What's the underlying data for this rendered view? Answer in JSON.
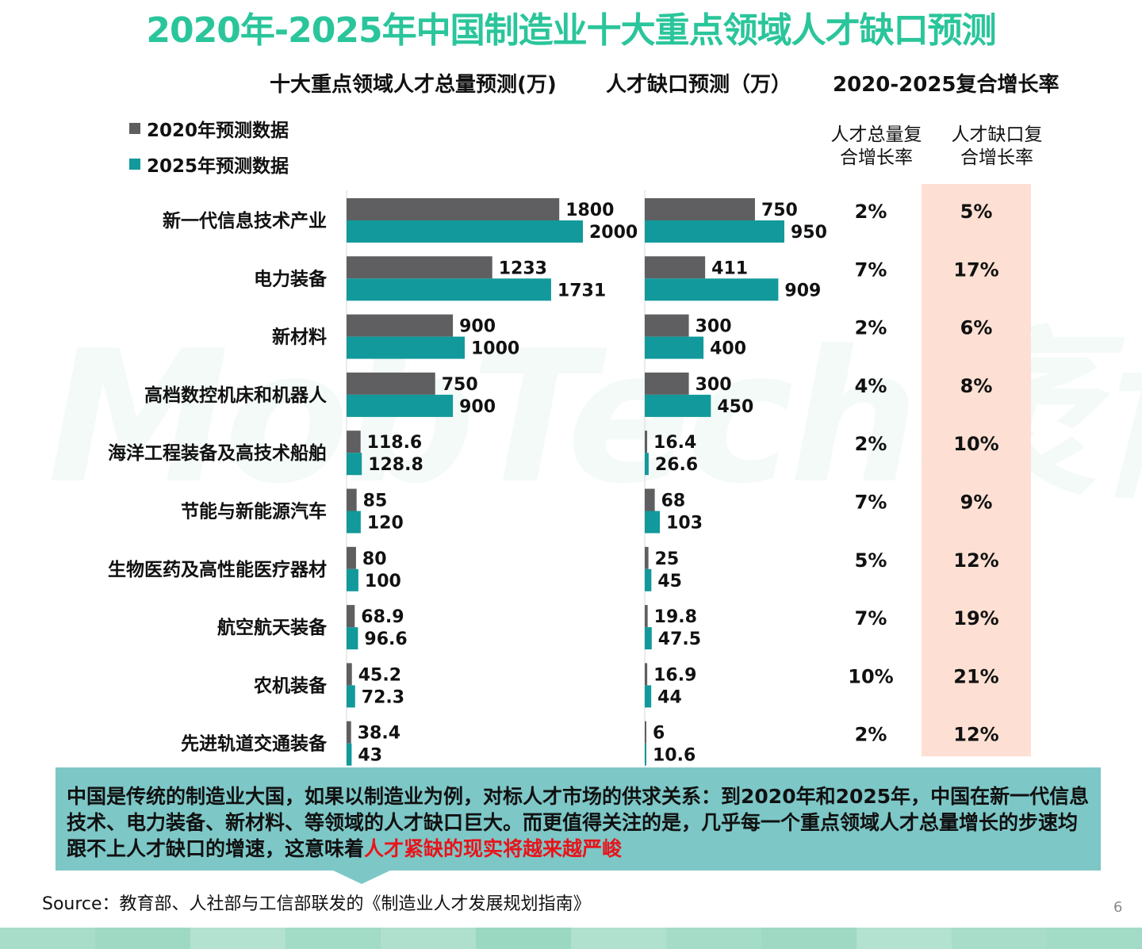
{
  "title": "2020年-2025年中国制造业十大重点领域人才缺口预测",
  "headers": {
    "total": "十大重点领域人才总量预测(万)",
    "gap": "人才缺口预测（万）",
    "cagr": "2020-2025复合增长率",
    "sub_total_line1": "人才总量复",
    "sub_total_line2": "合增长率",
    "sub_gap_line1": "人才缺口复",
    "sub_gap_line2": "合增长率"
  },
  "legend": {
    "s2020": "2020年预测数据",
    "s2025": "2025年预测数据"
  },
  "watermark": "MobTech袤博",
  "colors": {
    "title": "#2ac59b",
    "bar2020": "#5f5f61",
    "bar2025": "#12999b",
    "pink_col": "#fde0d3",
    "summary_bg": "#7dc7c7",
    "highlight": "#e8141b"
  },
  "chart_data": {
    "type": "bar",
    "orientation": "horizontal",
    "categories": [
      "新一代信息技术产业",
      "电力装备",
      "新材料",
      "高档数控机床和机器人",
      "海洋工程装备及高技术船舶",
      "节能与新能源汽车",
      "生物医药及高性能医疗器材",
      "航空航天装备",
      "农机装备",
      "先进轨道交通装备"
    ],
    "panels": [
      {
        "title": "十大重点领域人才总量预测(万)",
        "series": [
          {
            "name": "2020年预测数据",
            "values": [
              1800,
              1233,
              900,
              750,
              118.6,
              85,
              80,
              68.9,
              45.2,
              38.4
            ]
          },
          {
            "name": "2025年预测数据",
            "values": [
              2000,
              1731,
              1000,
              900,
              128.8,
              120,
              100,
              96.6,
              72.3,
              43
            ]
          }
        ],
        "labels_2020": [
          "1800",
          "1233",
          "900",
          "750",
          "118.6",
          "85",
          "80",
          "68.9",
          "45.2",
          "38.4"
        ],
        "labels_2025": [
          "2000",
          "1731",
          "1000",
          "900",
          "128.8",
          "120",
          "100",
          "96.6",
          "72.3",
          "43"
        ]
      },
      {
        "title": "人才缺口预测（万）",
        "series": [
          {
            "name": "2020年预测数据",
            "values": [
              750,
              411,
              300,
              300,
              16.4,
              68,
              25,
              19.8,
              16.9,
              6
            ]
          },
          {
            "name": "2025年预测数据",
            "values": [
              950,
              909,
              400,
              450,
              26.6,
              103,
              45,
              47.5,
              44,
              10.6
            ]
          }
        ],
        "labels_2020": [
          "750",
          "411",
          "300",
          "300",
          "16.4",
          "68",
          "25",
          "19.8",
          "16.9",
          "6"
        ],
        "labels_2025": [
          "950",
          "909",
          "400",
          "450",
          "26.6",
          "103",
          "45",
          "47.5",
          "44",
          "10.6"
        ]
      }
    ],
    "cagr_total": [
      "2%",
      "7%",
      "2%",
      "4%",
      "2%",
      "7%",
      "5%",
      "7%",
      "10%",
      "2%"
    ],
    "cagr_gap": [
      "5%",
      "17%",
      "6%",
      "8%",
      "10%",
      "9%",
      "12%",
      "19%",
      "21%",
      "12%"
    ]
  },
  "summary": {
    "text": "中国是传统的制造业大国，如果以制造业为例，对标人才市场的供求关系：到2020年和2025年，中国在新一代信息 技术、电力装备、新材料、等领域的人才缺口巨大。而更值得关注的是，几乎每一个重点领域人才总量增长的步速均跟不上人才缺口的增速，这意味着",
    "highlight": "人才紧缺的现实将越来越严峻"
  },
  "source": "Source：教育部、人社部与工信部联发的《制造业人才发展规划指南》",
  "page_number": "6"
}
